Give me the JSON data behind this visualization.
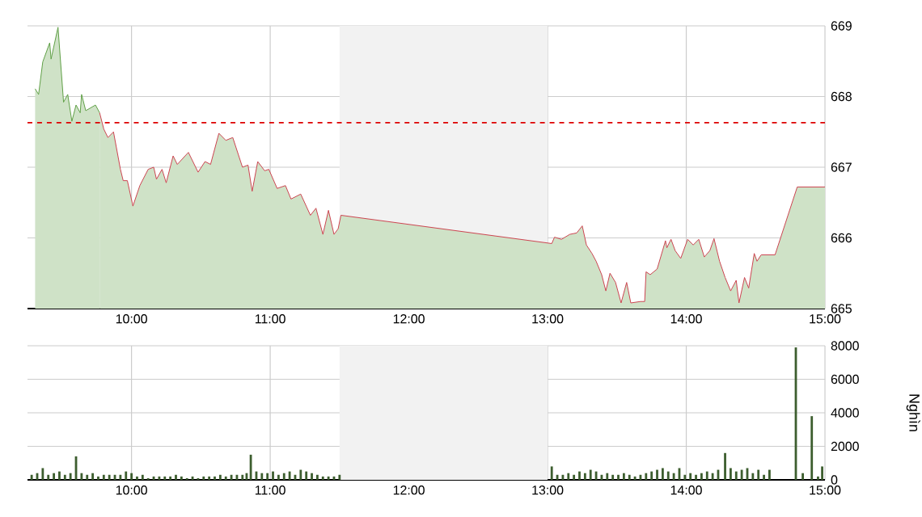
{
  "chart_data": [
    {
      "type": "area",
      "series": [
        {
          "color": "#5fa046",
          "x": [
            9.305,
            9.33,
            9.36,
            9.41,
            9.42,
            9.47,
            9.51,
            9.54,
            9.57,
            9.6,
            9.63,
            9.64,
            9.67,
            9.74,
            9.77
          ],
          "values": [
            668.11,
            668.03,
            668.49,
            668.76,
            668.53,
            668.98,
            667.92,
            668.03,
            667.65,
            667.88,
            667.77,
            668.03,
            667.8,
            667.88,
            667.77
          ]
        },
        {
          "color": "#cc4450",
          "x": [
            9.77,
            9.8,
            9.83,
            9.87,
            9.92,
            9.94,
            9.97,
            10.01,
            10.06,
            10.12,
            10.16,
            10.18,
            10.22,
            10.25,
            10.3,
            10.33,
            10.41,
            10.48,
            10.53,
            10.57,
            10.63,
            10.68,
            10.73,
            10.8,
            10.84,
            10.87,
            10.91,
            10.96,
            10.99,
            11.05,
            11.11,
            11.15,
            11.22,
            11.29,
            11.33,
            11.38,
            11.42,
            11.46,
            11.49,
            11.51,
            13.03,
            13.05,
            13.1,
            13.16,
            13.21,
            13.25,
            13.28,
            13.32,
            13.35,
            13.39,
            13.42,
            13.45,
            13.49,
            13.53,
            13.57,
            13.6,
            13.67,
            13.7,
            13.71,
            13.74,
            13.79,
            13.85,
            13.86,
            13.89,
            13.92,
            13.96,
            14.01,
            14.05,
            14.09,
            14.13,
            14.17,
            14.2,
            14.24,
            14.28,
            14.32,
            14.36,
            14.38,
            14.42,
            14.45,
            14.49,
            14.51,
            14.54,
            14.64,
            14.8,
            15.0
          ],
          "values": [
            667.77,
            667.54,
            667.42,
            667.5,
            666.97,
            666.81,
            666.81,
            666.45,
            666.74,
            666.97,
            667.0,
            666.83,
            666.97,
            666.78,
            667.16,
            667.04,
            667.21,
            666.93,
            667.08,
            667.04,
            667.48,
            667.38,
            667.42,
            667.0,
            667.03,
            666.66,
            667.08,
            666.95,
            666.97,
            666.7,
            666.74,
            666.55,
            666.62,
            666.32,
            666.42,
            666.05,
            666.39,
            666.05,
            666.13,
            666.32,
            665.92,
            666.01,
            665.98,
            666.05,
            666.07,
            666.17,
            665.9,
            665.78,
            665.67,
            665.48,
            665.25,
            665.5,
            665.37,
            665.08,
            665.37,
            665.08,
            665.1,
            665.1,
            665.52,
            665.48,
            665.56,
            665.96,
            665.86,
            665.98,
            665.82,
            665.71,
            665.98,
            665.9,
            665.98,
            665.73,
            665.82,
            665.99,
            665.67,
            665.44,
            665.25,
            665.4,
            665.08,
            665.44,
            665.29,
            665.78,
            665.67,
            665.76,
            665.76,
            666.72,
            666.72
          ]
        }
      ],
      "xlim": [
        9.25,
        15.0
      ],
      "xticks": [
        {
          "value": 10,
          "label": "10:00"
        },
        {
          "value": 11,
          "label": "11:00"
        },
        {
          "value": 12,
          "label": "12:00"
        },
        {
          "value": 13,
          "label": "13:00"
        },
        {
          "value": 14,
          "label": "14:00"
        },
        {
          "value": 15,
          "label": "15:00"
        }
      ],
      "ylim": [
        665,
        669
      ],
      "yticks": [
        665,
        666,
        667,
        668,
        669
      ],
      "grid": true,
      "ref_lines": [
        {
          "axis": "y",
          "value": 667.63,
          "color": "#dd0000",
          "line_style": "dashed"
        }
      ],
      "bands": [
        {
          "axis": "x",
          "from": 11.5,
          "to": 13.0,
          "color": "#f2f2f2"
        }
      ]
    },
    {
      "type": "bar",
      "color": "#3d5e2f",
      "x": [
        9.28,
        9.32,
        9.36,
        9.4,
        9.44,
        9.48,
        9.52,
        9.56,
        9.6,
        9.64,
        9.68,
        9.72,
        9.76,
        9.8,
        9.84,
        9.88,
        9.92,
        9.96,
        10.0,
        10.04,
        10.08,
        10.12,
        10.16,
        10.2,
        10.24,
        10.28,
        10.32,
        10.36,
        10.4,
        10.44,
        10.48,
        10.52,
        10.56,
        10.6,
        10.64,
        10.68,
        10.72,
        10.76,
        10.8,
        10.83,
        10.86,
        10.9,
        10.94,
        10.98,
        11.02,
        11.06,
        11.1,
        11.14,
        11.18,
        11.22,
        11.26,
        11.3,
        11.34,
        11.38,
        11.42,
        11.46,
        11.5,
        13.03,
        13.07,
        13.11,
        13.15,
        13.19,
        13.23,
        13.27,
        13.31,
        13.35,
        13.39,
        13.43,
        13.47,
        13.51,
        13.55,
        13.59,
        13.63,
        13.67,
        13.71,
        13.75,
        13.79,
        13.83,
        13.87,
        13.91,
        13.95,
        13.99,
        14.03,
        14.07,
        14.11,
        14.15,
        14.19,
        14.23,
        14.28,
        14.32,
        14.36,
        14.4,
        14.44,
        14.48,
        14.52,
        14.56,
        14.6,
        14.79,
        14.84,
        14.905,
        14.95,
        14.98
      ],
      "values": [
        300,
        400,
        700,
        300,
        400,
        500,
        300,
        400,
        1400,
        400,
        300,
        400,
        200,
        300,
        300,
        300,
        300,
        500,
        400,
        200,
        300,
        100,
        200,
        200,
        200,
        200,
        300,
        200,
        100,
        200,
        100,
        200,
        200,
        200,
        300,
        200,
        300,
        300,
        300,
        400,
        1500,
        500,
        400,
        400,
        500,
        300,
        400,
        500,
        300,
        600,
        500,
        400,
        300,
        200,
        200,
        200,
        300,
        800,
        300,
        300,
        400,
        300,
        500,
        400,
        600,
        500,
        300,
        400,
        300,
        300,
        400,
        300,
        200,
        300,
        400,
        500,
        600,
        700,
        500,
        400,
        700,
        300,
        400,
        300,
        400,
        500,
        400,
        600,
        1600,
        700,
        500,
        600,
        700,
        400,
        600,
        300,
        600,
        7900,
        400,
        3800,
        200,
        800
      ],
      "xlim": [
        9.25,
        15.0
      ],
      "xticks": [
        {
          "value": 10,
          "label": "10:00"
        },
        {
          "value": 11,
          "label": "11:00"
        },
        {
          "value": 12,
          "label": "12:00"
        },
        {
          "value": 13,
          "label": "13:00"
        },
        {
          "value": 14,
          "label": "14:00"
        },
        {
          "value": 15,
          "label": "15:00"
        }
      ],
      "ylim": [
        0,
        8000
      ],
      "yticks": [
        0,
        2000,
        4000,
        6000,
        8000
      ],
      "ylabel": "Nghìn",
      "grid": true,
      "bands": [
        {
          "axis": "x",
          "from": 11.5,
          "to": 13.0,
          "color": "#f2f2f2"
        }
      ]
    }
  ]
}
